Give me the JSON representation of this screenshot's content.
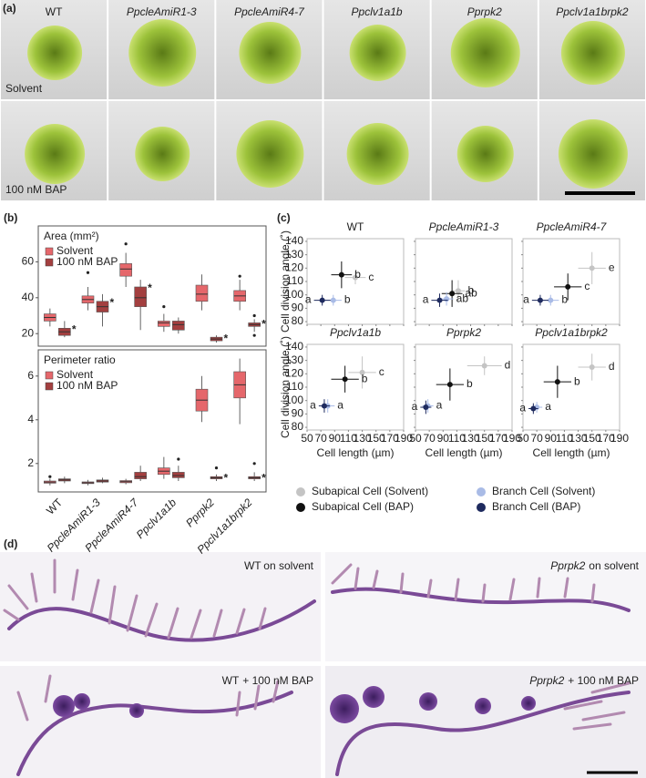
{
  "genotypes": [
    {
      "name": "WT",
      "italic": false
    },
    {
      "name": "PpcleAmiR1-3",
      "italic": true
    },
    {
      "name": "PpcleAmiR4-7",
      "italic": true
    },
    {
      "name": "Ppclv1a1b",
      "italic": true
    },
    {
      "name": "Pprpk2",
      "italic": true
    },
    {
      "name": "Ppclv1a1brpk2",
      "italic": true
    }
  ],
  "panel_a": {
    "label": "(a)",
    "rows": [
      "Solvent",
      "100 nM BAP"
    ]
  },
  "panel_b": {
    "label": "(b)"
  },
  "panel_c": {
    "label": "(c)",
    "xlabel": "Cell length (µm)",
    "ylabel": "Cell division angle (˚)",
    "xlim": [
      50,
      190
    ],
    "xticks": [
      50,
      70,
      90,
      110,
      130,
      150,
      170,
      190
    ],
    "ylim": [
      78,
      142
    ],
    "yticks": [
      80,
      90,
      100,
      110,
      120,
      130,
      140
    ],
    "legend": [
      {
        "name": "Subapical Cell (Solvent)",
        "color": "#c4c4c4"
      },
      {
        "name": "Subapical Cell (BAP)",
        "color": "#111111"
      },
      {
        "name": "Branch Cell (Solvent)",
        "color": "#a9bbe6"
      },
      {
        "name": "Branch Cell (BAP)",
        "color": "#1e2a5e"
      }
    ]
  },
  "panel_d": {
    "label": "(d)",
    "images": [
      {
        "genotype": "WT",
        "italic": false,
        "condition": "on solvent"
      },
      {
        "genotype": "Pprpk2",
        "italic": true,
        "condition": "on solvent"
      },
      {
        "genotype": "WT",
        "italic": false,
        "condition": "+ 100 nM BAP"
      },
      {
        "genotype": "Pprpk2",
        "italic": true,
        "condition": "+ 100 nM BAP"
      }
    ]
  },
  "chart_data": [
    {
      "type": "box",
      "title": "Area (mm²)",
      "ylim": [
        13,
        80
      ],
      "yticks": [
        20,
        40,
        60
      ],
      "significance": {
        "label": "*",
        "color": "#d23a2a",
        "flags": [
          true,
          true,
          true,
          false,
          true,
          true
        ]
      },
      "series": [
        {
          "name": "Solvent",
          "color": "#e5676b",
          "boxes": [
            {
              "min": 24,
              "q1": 27,
              "median": 29,
              "q3": 31,
              "max": 34,
              "outliers": []
            },
            {
              "min": 33,
              "q1": 37,
              "median": 39,
              "q3": 41,
              "max": 46,
              "outliers": [
                54
              ]
            },
            {
              "min": 46,
              "q1": 52,
              "median": 56,
              "q3": 59,
              "max": 65,
              "outliers": [
                70
              ]
            },
            {
              "min": 21,
              "q1": 24,
              "median": 26,
              "q3": 27,
              "max": 31,
              "outliers": [
                35
              ]
            },
            {
              "min": 33,
              "q1": 38,
              "median": 42,
              "q3": 47,
              "max": 53,
              "outliers": []
            },
            {
              "min": 33,
              "q1": 38,
              "median": 41,
              "q3": 44,
              "max": 50,
              "outliers": [
                52
              ]
            }
          ]
        },
        {
          "name": "100 nM BAP",
          "color": "#a33f3f",
          "boxes": [
            {
              "min": 18,
              "q1": 19,
              "median": 21,
              "q3": 23,
              "max": 27,
              "outliers": []
            },
            {
              "min": 24,
              "q1": 32,
              "median": 35,
              "q3": 38,
              "max": 42,
              "outliers": []
            },
            {
              "min": 22,
              "q1": 35,
              "median": 40,
              "q3": 46,
              "max": 50,
              "outliers": []
            },
            {
              "min": 20,
              "q1": 22,
              "median": 25,
              "q3": 27,
              "max": 29,
              "outliers": []
            },
            {
              "min": 15,
              "q1": 16,
              "median": 17,
              "q3": 18,
              "max": 19,
              "outliers": []
            },
            {
              "min": 21,
              "q1": 24,
              "median": 25,
              "q3": 26,
              "max": 28,
              "outliers": [
                19,
                30
              ]
            }
          ]
        }
      ]
    },
    {
      "type": "box",
      "title": "Perimeter ratio",
      "ylim": [
        0.7,
        7.2
      ],
      "yticks": [
        2,
        4,
        6
      ],
      "significance": {
        "label": "*",
        "color": "#d23a2a",
        "flags": [
          false,
          false,
          false,
          false,
          true,
          true
        ]
      },
      "series": [
        {
          "name": "Solvent",
          "color": "#e5676b",
          "boxes": [
            {
              "min": 1.0,
              "q1": 1.1,
              "median": 1.15,
              "q3": 1.2,
              "max": 1.3,
              "outliers": [
                1.4
              ]
            },
            {
              "min": 1.0,
              "q1": 1.08,
              "median": 1.12,
              "q3": 1.16,
              "max": 1.25,
              "outliers": []
            },
            {
              "min": 1.05,
              "q1": 1.12,
              "median": 1.17,
              "q3": 1.22,
              "max": 1.3,
              "outliers": []
            },
            {
              "min": 1.3,
              "q1": 1.5,
              "median": 1.65,
              "q3": 1.8,
              "max": 2.3,
              "outliers": []
            },
            {
              "min": 3.9,
              "q1": 4.4,
              "median": 4.9,
              "q3": 5.4,
              "max": 6.0,
              "outliers": []
            },
            {
              "min": 3.8,
              "q1": 5.0,
              "median": 5.6,
              "q3": 6.2,
              "max": 6.8,
              "outliers": []
            }
          ]
        },
        {
          "name": "100 nM BAP",
          "color": "#a33f3f",
          "boxes": [
            {
              "min": 1.1,
              "q1": 1.2,
              "median": 1.25,
              "q3": 1.3,
              "max": 1.4,
              "outliers": []
            },
            {
              "min": 1.1,
              "q1": 1.15,
              "median": 1.2,
              "q3": 1.25,
              "max": 1.35,
              "outliers": []
            },
            {
              "min": 1.2,
              "q1": 1.3,
              "median": 1.4,
              "q3": 1.6,
              "max": 1.9,
              "outliers": []
            },
            {
              "min": 1.2,
              "q1": 1.35,
              "median": 1.45,
              "q3": 1.6,
              "max": 1.9,
              "outliers": [
                2.2
              ]
            },
            {
              "min": 1.2,
              "q1": 1.3,
              "median": 1.35,
              "q3": 1.4,
              "max": 1.5,
              "outliers": [
                1.8
              ]
            },
            {
              "min": 1.2,
              "q1": 1.3,
              "median": 1.35,
              "q3": 1.4,
              "max": 1.6,
              "outliers": [
                2.0
              ]
            }
          ]
        }
      ]
    },
    {
      "type": "scatter",
      "series": [
        {
          "x": 120,
          "y": 113,
          "xerr": 15,
          "yerr": 5,
          "letter": "c"
        },
        {
          "x": 100,
          "y": 115,
          "xerr": 15,
          "yerr": 10,
          "letter": "b"
        },
        {
          "x": 88,
          "y": 96,
          "xerr": 12,
          "yerr": 4,
          "letter": "b"
        },
        {
          "x": 72,
          "y": 96,
          "xerr": 12,
          "yerr": 4,
          "letter": "a"
        }
      ]
    },
    {
      "type": "scatter",
      "series": [
        {
          "x": 112,
          "y": 103,
          "xerr": 10,
          "yerr": 8,
          "letter": "b"
        },
        {
          "x": 103,
          "y": 101,
          "xerr": 15,
          "yerr": 10,
          "letter": "ab"
        },
        {
          "x": 95,
          "y": 97,
          "xerr": 10,
          "yerr": 5,
          "letter": "ab"
        },
        {
          "x": 85,
          "y": 96,
          "xerr": 12,
          "yerr": 5,
          "letter": "a"
        }
      ]
    },
    {
      "type": "scatter",
      "series": [
        {
          "x": 150,
          "y": 120,
          "xerr": 20,
          "yerr": 12,
          "letter": "e"
        },
        {
          "x": 115,
          "y": 106,
          "xerr": 20,
          "yerr": 10,
          "letter": "c"
        },
        {
          "x": 90,
          "y": 96,
          "xerr": 12,
          "yerr": 4,
          "letter": "b"
        },
        {
          "x": 75,
          "y": 96,
          "xerr": 12,
          "yerr": 4,
          "letter": "a"
        }
      ]
    },
    {
      "type": "scatter",
      "series": [
        {
          "x": 130,
          "y": 121,
          "xerr": 20,
          "yerr": 12,
          "letter": "c"
        },
        {
          "x": 105,
          "y": 116,
          "xerr": 20,
          "yerr": 10,
          "letter": "b"
        },
        {
          "x": 80,
          "y": 96,
          "xerr": 10,
          "yerr": 5,
          "letter": "a"
        },
        {
          "x": 75,
          "y": 96,
          "xerr": 8,
          "yerr": 5,
          "letter": "a"
        }
      ]
    },
    {
      "type": "scatter",
      "series": [
        {
          "x": 150,
          "y": 126,
          "xerr": 25,
          "yerr": 7,
          "letter": "d"
        },
        {
          "x": 100,
          "y": 112,
          "xerr": 20,
          "yerr": 12,
          "letter": "b"
        },
        {
          "x": 68,
          "y": 96,
          "xerr": 8,
          "yerr": 5,
          "letter": "a"
        },
        {
          "x": 65,
          "y": 95,
          "xerr": 8,
          "yerr": 5,
          "letter": "a"
        }
      ]
    },
    {
      "type": "scatter",
      "series": [
        {
          "x": 150,
          "y": 125,
          "xerr": 20,
          "yerr": 10,
          "letter": "d"
        },
        {
          "x": 100,
          "y": 114,
          "xerr": 20,
          "yerr": 12,
          "letter": "b"
        },
        {
          "x": 70,
          "y": 95,
          "xerr": 8,
          "yerr": 4,
          "letter": "a"
        },
        {
          "x": 65,
          "y": 94,
          "xerr": 7,
          "yerr": 4,
          "letter": "a"
        }
      ]
    }
  ]
}
